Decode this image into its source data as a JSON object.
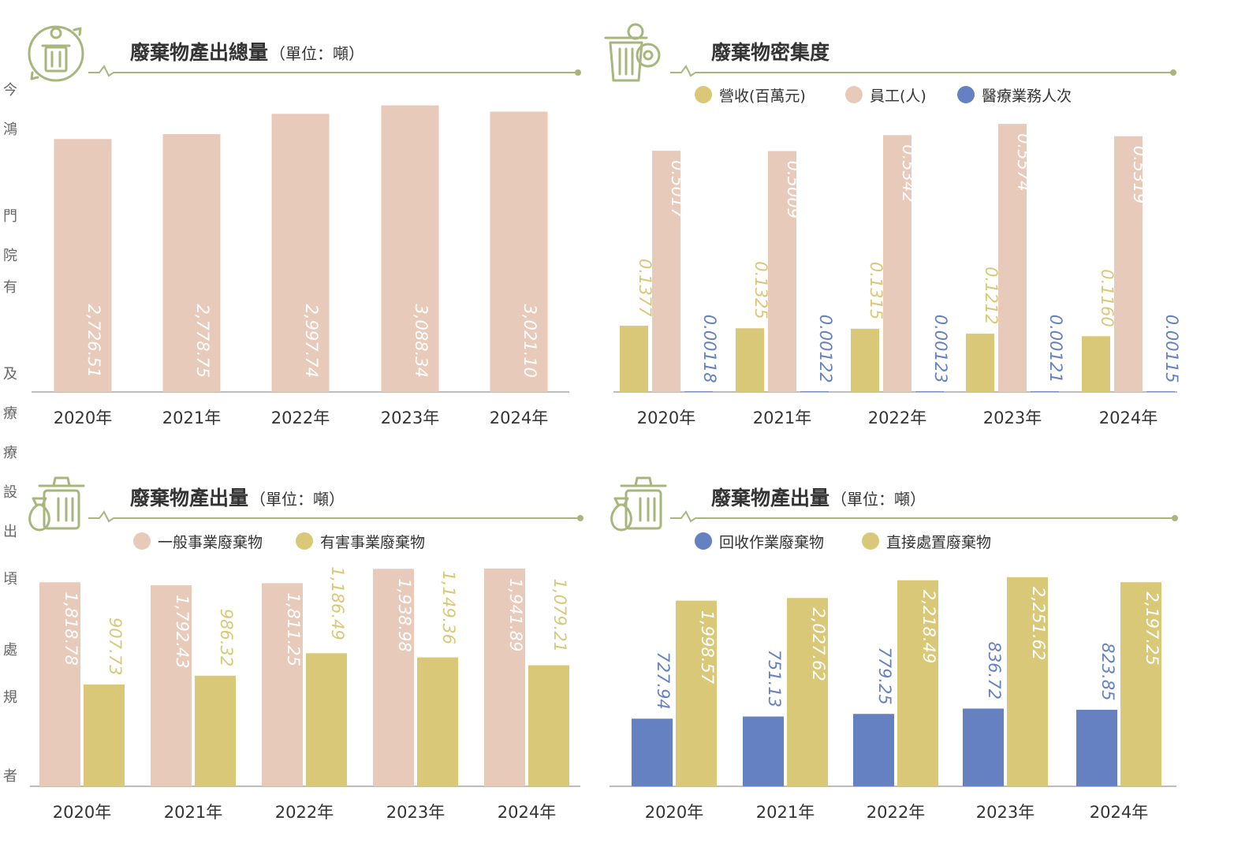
{
  "colors": {
    "pink": "#E8CABA",
    "gold": "#D9C878",
    "blue": "#6581C2",
    "olive": "#A7B67D",
    "axis": "#BDBDBD"
  },
  "side_text": [
    "今",
    "鴻",
    "門",
    "院",
    "有",
    "及",
    "療",
    "療",
    "設",
    "出",
    "頃",
    "處",
    "規",
    "者"
  ],
  "chart_data": [
    {
      "type": "bar",
      "title": "廢棄物產出總量",
      "unit": "（單位：噸）",
      "categories": [
        "2020年",
        "2021年",
        "2022年",
        "2023年",
        "2024年"
      ],
      "series": [
        {
          "values": [
            2726.51,
            2778.75,
            2997.74,
            3088.34,
            3021.1
          ],
          "labels": [
            "2,726.51",
            "2,778.75",
            "2,997.74",
            "3,088.34",
            "3,021.10"
          ],
          "color": "#E8CABA",
          "label_color": "#FFFFFF"
        }
      ],
      "legend": "none",
      "grid": false
    },
    {
      "type": "bar",
      "title": "廢棄物密集度",
      "unit": "",
      "categories": [
        "2020年",
        "2021年",
        "2022年",
        "2023年",
        "2024年"
      ],
      "legend_position": "top",
      "series": [
        {
          "name": "營收(百萬元)",
          "values": [
            0.1377,
            0.1325,
            0.1315,
            0.1212,
            0.116
          ],
          "labels": [
            "0.1377",
            "0.1325",
            "0.1315",
            "0.1212",
            "0.1160"
          ],
          "color": "#D9C878",
          "label_color": "#D9C878"
        },
        {
          "name": "員工(人)",
          "values": [
            0.5017,
            0.5009,
            0.5342,
            0.5574,
            0.5319
          ],
          "labels": [
            "0.5017",
            "0.5009",
            "0.5342",
            "0.5574",
            "0.5319"
          ],
          "color": "#E8CABA",
          "label_color": "#FFFFFF"
        },
        {
          "name": "醫療業務人次",
          "values": [
            0.00118,
            0.00122,
            0.00123,
            0.00121,
            0.00115
          ],
          "labels": [
            "0.00118",
            "0.00122",
            "0.00123",
            "0.00121",
            "0.00115"
          ],
          "color": "#6581C2",
          "label_color": "#6581C2"
        }
      ],
      "grid": false
    },
    {
      "type": "bar",
      "title": "廢棄物產出量",
      "unit": "（單位：噸）",
      "categories": [
        "2020年",
        "2021年",
        "2022年",
        "2023年",
        "2024年"
      ],
      "legend_position": "top",
      "series": [
        {
          "name": "一般事業廢棄物",
          "values": [
            1818.78,
            1792.43,
            1811.25,
            1938.98,
            1941.89
          ],
          "labels": [
            "1,818.78",
            "1,792.43",
            "1,811.25",
            "1,938.98",
            "1,941.89"
          ],
          "color": "#E8CABA",
          "label_color": "#FFFFFF"
        },
        {
          "name": "有害事業廢棄物",
          "values": [
            907.73,
            986.32,
            1186.49,
            1149.36,
            1079.21
          ],
          "labels": [
            "907.73",
            "986.32",
            "1,186.49",
            "1,149.36",
            "1,079.21"
          ],
          "color": "#D9C878",
          "label_color": "#D9C878"
        }
      ],
      "grid": false
    },
    {
      "type": "bar",
      "title": "廢棄物產出量",
      "unit": "（單位：噸）",
      "categories": [
        "2020年",
        "2021年",
        "2022年",
        "2023年",
        "2024年"
      ],
      "legend_position": "top",
      "series": [
        {
          "name": "回收作業廢棄物",
          "values": [
            727.94,
            751.13,
            779.25,
            836.72,
            823.85
          ],
          "labels": [
            "727.94",
            "751.13",
            "779.25",
            "836.72",
            "823.85"
          ],
          "color": "#6581C2",
          "label_color": "#6581C2"
        },
        {
          "name": "直接處置廢棄物",
          "values": [
            1998.57,
            2027.62,
            2218.49,
            2251.62,
            2197.25
          ],
          "labels": [
            "1,998.57",
            "2,027.62",
            "2,218.49",
            "2,251.62",
            "2,197.25"
          ],
          "color": "#D9C878",
          "label_color": "#FFFFFF"
        }
      ],
      "grid": false
    }
  ]
}
